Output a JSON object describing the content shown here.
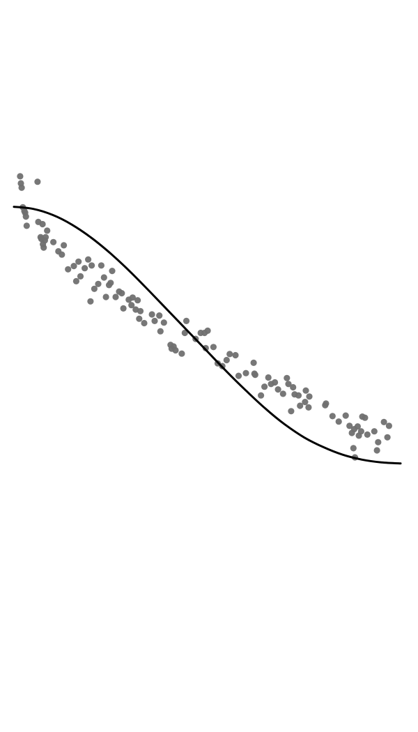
{
  "chart_data": {
    "type": "scatter",
    "title": "",
    "xlabel": "",
    "ylabel": "",
    "axes_visible": false,
    "grid": false,
    "legend": "none",
    "xlim": [
      0,
      100
    ],
    "ylim": [
      0,
      100
    ],
    "colors": {
      "points": "#707070",
      "fit_line": "#000000"
    },
    "series": [
      {
        "kind": "points",
        "x": [
          1.6,
          1.8,
          2.0,
          2.3,
          2.7,
          2.9,
          3.1,
          3.3,
          6.1,
          6.3,
          6.9,
          7.1,
          7.4,
          7.5,
          7.7,
          8.0,
          8.2,
          8.6,
          10.2,
          11.5,
          12.4,
          12.9,
          14.0,
          15.5,
          16.1,
          16.7,
          17.2,
          18.3,
          19.2,
          19.8,
          20.1,
          20.8,
          21.8,
          22.6,
          23.3,
          23.8,
          24.6,
          25.0,
          25.4,
          26.3,
          27.2,
          27.9,
          28.3,
          29.7,
          30.4,
          30.7,
          31.5,
          32.0,
          32.4,
          32.7,
          33.7,
          35.7,
          36.4,
          37.6,
          37.9,
          38.8,
          40.5,
          40.8,
          41.3,
          41.8,
          43.4,
          44.2,
          44.6,
          47.0,
          48.3,
          49.3,
          49.6,
          50.1,
          51.6,
          52.7,
          53.9,
          55.0,
          55.8,
          57.3,
          58.1,
          60.0,
          62.0,
          62.2,
          62.4,
          63.9,
          64.8,
          65.8,
          66.5,
          67.5,
          68.3,
          69.6,
          70.6,
          71.0,
          71.7,
          72.2,
          72.6,
          73.6,
          74.0,
          75.3,
          75.5,
          76.2,
          76.4,
          80.5,
          80.7,
          82.4,
          84.0,
          85.8,
          86.8,
          87.4,
          87.8,
          88.0,
          88.2,
          88.9,
          89.2,
          89.8,
          90.1,
          90.8,
          91.4,
          93.2,
          93.9,
          94.2,
          95.7,
          96.6,
          97.0
        ],
        "y": [
          80.4,
          79.1,
          78.3,
          74.7,
          74.0,
          73.7,
          73.0,
          71.3,
          79.4,
          72.0,
          69.2,
          68.9,
          71.6,
          67.9,
          67.3,
          68.6,
          69.2,
          70.4,
          68.3,
          66.6,
          66.0,
          67.7,
          63.3,
          63.9,
          61.1,
          64.7,
          62.0,
          63.5,
          65.1,
          57.4,
          64.0,
          59.7,
          60.6,
          64.0,
          61.8,
          58.2,
          60.4,
          60.8,
          63.0,
          58.2,
          59.2,
          58.9,
          56.1,
          57.7,
          56.7,
          58.1,
          55.9,
          57.6,
          54.2,
          55.6,
          53.4,
          55.0,
          53.8,
          54.8,
          51.9,
          53.5,
          49.4,
          48.7,
          49.1,
          48.4,
          47.8,
          51.6,
          53.8,
          50.5,
          51.6,
          51.6,
          48.8,
          52.0,
          49.0,
          46.0,
          45.5,
          46.6,
          47.7,
          47.5,
          43.7,
          44.2,
          46.1,
          44.1,
          43.9,
          40.1,
          41.7,
          43.4,
          42.2,
          42.5,
          41.2,
          40.4,
          43.3,
          42.2,
          37.2,
          41.6,
          40.3,
          40.1,
          38.2,
          38.9,
          41.0,
          37.9,
          39.9,
          38.3,
          38.6,
          36.3,
          35.3,
          36.4,
          34.5,
          33.2,
          30.4,
          33.9,
          28.7,
          34.4,
          32.7,
          33.5,
          36.2,
          36.0,
          32.9,
          33.5,
          30.0,
          31.5,
          35.2,
          32.4,
          34.5
        ]
      },
      {
        "kind": "line",
        "x": [
          0,
          5,
          10,
          15,
          20,
          25,
          30,
          35,
          40,
          45,
          50,
          55,
          60,
          65,
          70,
          75,
          80,
          85,
          90,
          95,
          100
        ],
        "y": [
          74.8,
          74.4,
          73.3,
          71.5,
          69.1,
          66.2,
          62.9,
          59.3,
          55.6,
          51.9,
          48.2,
          44.5,
          41.0,
          37.7,
          34.8,
          32.4,
          30.6,
          29.2,
          28.3,
          27.8,
          27.6
        ]
      }
    ]
  }
}
